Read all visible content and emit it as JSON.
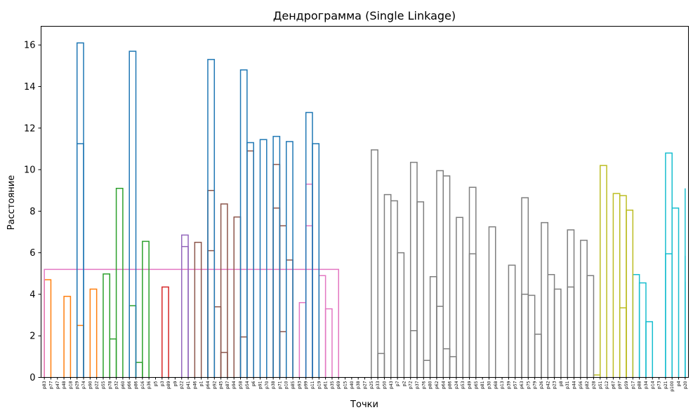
{
  "chart_data": {
    "type": "dendrogram",
    "title": "Дендрограмма (Single Linkage)",
    "xlabel": "Точки",
    "ylabel": "Расстояние",
    "ylim": [
      0,
      16.9
    ],
    "yticks": [
      0,
      2,
      4,
      6,
      8,
      10,
      12,
      14,
      16
    ],
    "grid": false,
    "colors": {
      "above_threshold": "#1f77b4",
      "cluster_1": "#ff7f0e",
      "cluster_2": "#2ca02c",
      "cluster_3": "#d62728",
      "cluster_4": "#9467bd",
      "cluster_5": "#8c564b",
      "cluster_6": "#e377c2",
      "cluster_7": "#7f7f7f",
      "cluster_8": "#bcbd22",
      "cluster_9": "#17becf"
    },
    "leaves": [
      "p83",
      "p77",
      "p47",
      "p48",
      "p18",
      "p29",
      "p74",
      "p90",
      "p22",
      "p55",
      "p78",
      "p32",
      "p60",
      "p66",
      "p86",
      "p16",
      "p36",
      "p5",
      "p3",
      "p89",
      "p9",
      "p22",
      "p41",
      "p46",
      "p1",
      "p64",
      "p92",
      "p45",
      "p87",
      "p94",
      "p58",
      "p54",
      "p6",
      "p91",
      "p70",
      "p38",
      "p71",
      "p10",
      "p85",
      "p93",
      "p99",
      "p11",
      "p19",
      "p61",
      "p35",
      "p69",
      "p15",
      "p40",
      "p38",
      "p27",
      "p25",
      "p33",
      "p50",
      "p43",
      "p7",
      "p2",
      "p72",
      "p37",
      "p76",
      "p80",
      "p62",
      "p64",
      "p86",
      "p24",
      "p53",
      "p49",
      "p65",
      "p81",
      "p30",
      "p68",
      "p13",
      "p39",
      "p57",
      "p63",
      "p75",
      "p79",
      "p26",
      "p42",
      "p23",
      "p8",
      "p31",
      "p44",
      "p56",
      "p82",
      "p28",
      "p51",
      "p12",
      "p67",
      "p97",
      "p59",
      "p17",
      "p88",
      "p34",
      "p14",
      "p73",
      "p21",
      "p100",
      "p4",
      "p20"
    ],
    "merges": [
      {
        "left": 84,
        "right": 85,
        "height": 0.12,
        "color": "cluster_8"
      },
      {
        "left": 14,
        "right": 15,
        "height": 0.72,
        "color": "cluster_2"
      },
      {
        "left": 58,
        "right": 59,
        "height": 0.82,
        "color": "cluster_7"
      },
      {
        "left": 62,
        "right": 63,
        "height": 1.0,
        "color": "cluster_7"
      },
      {
        "left": 51,
        "right": 52,
        "height": 1.15,
        "color": "cluster_7"
      },
      {
        "left": 27,
        "right": 28,
        "height": 1.2,
        "color": "cluster_5"
      },
      {
        "left": 61,
        "right": "c3",
        "height": 1.38,
        "color": "cluster_7"
      },
      {
        "left": 10,
        "right": 11,
        "height": 1.85,
        "color": "cluster_2"
      },
      {
        "left": 30,
        "right": 31,
        "height": 1.95,
        "color": "cluster_5"
      },
      {
        "left": 75,
        "right": 76,
        "height": 2.08,
        "color": "cluster_7"
      },
      {
        "left": 36,
        "right": 37,
        "height": 2.2,
        "color": "cluster_5"
      },
      {
        "left": 56,
        "right": 57,
        "height": 2.25,
        "color": "cluster_7"
      },
      {
        "left": 5,
        "right": 6,
        "height": 2.5,
        "color": "cluster_1"
      },
      {
        "left": 92,
        "right": 93,
        "height": 2.68,
        "color": "cluster_9"
      },
      {
        "left": 43,
        "right": 44,
        "height": 3.3,
        "color": "cluster_6"
      },
      {
        "left": 88,
        "right": 89,
        "height": 3.35,
        "color": "cluster_8"
      },
      {
        "left": 26,
        "right": "c5",
        "height": 3.4,
        "color": "cluster_5"
      },
      {
        "left": 60,
        "right": "c6",
        "height": 3.42,
        "color": "cluster_7"
      },
      {
        "left": 13,
        "right": "c1",
        "height": 3.45,
        "color": "cluster_2"
      },
      {
        "left": 39,
        "right": 40,
        "height": 3.6,
        "color": "cluster_6"
      },
      {
        "left": 3,
        "right": 4,
        "height": 3.9,
        "color": "cluster_1"
      },
      {
        "left": 74,
        "right": "c9",
        "height": 3.95,
        "color": "cluster_7"
      },
      {
        "left": 73,
        "right": "c21",
        "height": 4.0,
        "color": "cluster_7"
      },
      {
        "left": 78,
        "right": 79,
        "height": 4.25,
        "color": "cluster_7"
      },
      {
        "left": 80,
        "right": 81,
        "height": 4.35,
        "color": "cluster_7"
      },
      {
        "left": 7,
        "right": 8,
        "height": 4.25,
        "color": "cluster_1"
      },
      {
        "left": 18,
        "right": 19,
        "height": 4.35,
        "color": "cluster_3"
      },
      {
        "left": 91,
        "right": "c13",
        "height": 4.55,
        "color": "cluster_9"
      },
      {
        "left": 100,
        "right": 101,
        "height": 4.6,
        "color": "cluster_9"
      },
      {
        "left": "c20",
        "right": "c12",
        "height": 4.7,
        "color": "cluster_1"
      },
      {
        "left": 59,
        "right": "c17",
        "height": 4.85,
        "color": "cluster_7"
      },
      {
        "left": 83,
        "right": 84,
        "height": 4.9,
        "color": "cluster_7"
      },
      {
        "left": 42,
        "right": "c14",
        "height": 4.9,
        "color": "cluster_6"
      },
      {
        "left": 90,
        "right": "c27",
        "height": 4.95,
        "color": "cluster_9"
      },
      {
        "left": 77,
        "right": "c23",
        "height": 4.95,
        "color": "cluster_7"
      },
      {
        "left": 9,
        "right": "c7",
        "height": 4.98,
        "color": "cluster_2"
      },
      {
        "left": "c32",
        "right": 45,
        "height": 5.2,
        "color": "cluster_6"
      },
      {
        "left": 71,
        "right": 72,
        "height": 5.4,
        "color": "cluster_7"
      },
      {
        "left": 37,
        "right": "c10",
        "height": 5.65,
        "color": "cluster_5"
      },
      {
        "left": 99,
        "right": "c28",
        "height": 5.85,
        "color": "cluster_9"
      },
      {
        "left": 95,
        "right": 96,
        "height": 5.95,
        "color": "cluster_9"
      },
      {
        "left": 65,
        "right": 66,
        "height": 5.95,
        "color": "cluster_7"
      },
      {
        "left": 54,
        "right": "c4",
        "height": 6.0,
        "color": "cluster_7"
      },
      {
        "left": 25,
        "right": "c16",
        "height": 6.1,
        "color": "cluster_5"
      },
      {
        "left": 23,
        "right": 24,
        "height": 6.5,
        "color": "cluster_5"
      },
      {
        "left": 15,
        "right": "c18",
        "height": 6.55,
        "color": "cluster_2"
      },
      {
        "left": 82,
        "right": 83,
        "height": 6.6,
        "color": "cluster_7"
      },
      {
        "left": 21,
        "right": 22,
        "height": 6.85,
        "color": "cluster_4"
      },
      {
        "left": 21,
        "right": 22,
        "height": 6.3,
        "color": "cluster_4"
      },
      {
        "left": 80,
        "right": 81,
        "height": 7.1,
        "color": "cluster_7"
      },
      {
        "left": 68,
        "right": 69,
        "height": 7.25,
        "color": "cluster_7"
      },
      {
        "left": 40,
        "right": 41,
        "height": 7.3,
        "color": "cluster_6"
      },
      {
        "left": 36,
        "right": 37,
        "height": 7.3,
        "color": "cluster_5"
      },
      {
        "left": 76,
        "right": 77,
        "height": 7.45,
        "color": "cluster_7"
      },
      {
        "left": 63,
        "right": 64,
        "height": 7.7,
        "color": "cluster_7"
      },
      {
        "left": 29,
        "right": 30,
        "height": 7.72,
        "color": "cluster_5"
      },
      {
        "left": 96,
        "right": 97,
        "height": 8.15,
        "color": "cluster_9"
      },
      {
        "left": 35,
        "right": 36,
        "height": 8.15,
        "color": "cluster_5"
      },
      {
        "left": 89,
        "right": 90,
        "height": 8.05,
        "color": "cluster_8"
      },
      {
        "left": 27,
        "right": 28,
        "height": 8.35,
        "color": "cluster_5"
      },
      {
        "left": 57,
        "right": 58,
        "height": 8.45,
        "color": "cluster_7"
      },
      {
        "left": 53,
        "right": 54,
        "height": 8.5,
        "color": "cluster_7"
      },
      {
        "left": 73,
        "right": 74,
        "height": 8.65,
        "color": "cluster_7"
      },
      {
        "left": 88,
        "right": 89,
        "height": 8.75,
        "color": "cluster_8"
      },
      {
        "left": 52,
        "right": 53,
        "height": 8.8,
        "color": "cluster_7"
      },
      {
        "left": 87,
        "right": 88,
        "height": 8.85,
        "color": "cluster_8"
      },
      {
        "left": 25,
        "right": 26,
        "height": 9.0,
        "color": "cluster_5"
      },
      {
        "left": 11,
        "right": 12,
        "height": 9.1,
        "color": "cluster_2"
      },
      {
        "left": 98,
        "right": 99,
        "height": 9.1,
        "color": "cluster_9"
      },
      {
        "left": 65,
        "right": 66,
        "height": 9.15,
        "color": "cluster_7"
      },
      {
        "left": 40,
        "right": 41,
        "height": 9.3,
        "color": "cluster_6"
      },
      {
        "left": 61,
        "right": 62,
        "height": 9.7,
        "color": "cluster_7"
      },
      {
        "left": 60,
        "right": 61,
        "height": 9.95,
        "color": "cluster_7"
      },
      {
        "left": 85,
        "right": 86,
        "height": 10.2,
        "color": "cluster_8"
      },
      {
        "left": 35,
        "right": 36,
        "height": 10.25,
        "color": "cluster_5"
      },
      {
        "left": 56,
        "right": 57,
        "height": 10.35,
        "color": "cluster_7"
      },
      {
        "left": 95,
        "right": 96,
        "height": 10.8,
        "color": "cluster_9"
      },
      {
        "left": 31,
        "right": 32,
        "height": 10.9,
        "color": "cluster_5"
      },
      {
        "left": 50,
        "right": 51,
        "height": 10.95,
        "color": "cluster_7"
      },
      {
        "left": 41,
        "right": 42,
        "height": 11.25,
        "color": "above_threshold"
      },
      {
        "left": 31,
        "right": 32,
        "height": 11.3,
        "color": "above_threshold"
      },
      {
        "left": 37,
        "right": 38,
        "height": 11.35,
        "color": "above_threshold"
      },
      {
        "left": 33,
        "right": 34,
        "height": 11.45,
        "color": "above_threshold"
      },
      {
        "left": 5,
        "right": 6,
        "height": 11.25,
        "color": "above_threshold"
      },
      {
        "left": 35,
        "right": 36,
        "height": 11.6,
        "color": "above_threshold"
      },
      {
        "left": 40,
        "right": 41,
        "height": 12.75,
        "color": "above_threshold"
      },
      {
        "left": 30,
        "right": 31,
        "height": 14.8,
        "color": "above_threshold"
      },
      {
        "left": 25,
        "right": 26,
        "height": 15.3,
        "color": "above_threshold"
      },
      {
        "left": 13,
        "right": 14,
        "height": 15.7,
        "color": "above_threshold"
      },
      {
        "left": 5,
        "right": 6,
        "height": 16.1,
        "color": "above_threshold"
      }
    ]
  }
}
